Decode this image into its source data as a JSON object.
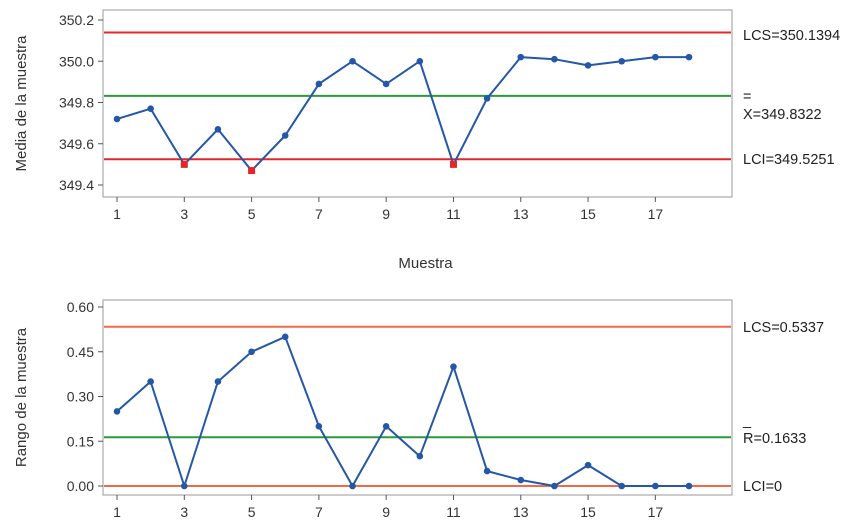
{
  "chart_data": [
    {
      "type": "line",
      "id": "xbar",
      "ylabel": "Media de la muestra",
      "xlabel": "Muestra",
      "ylim": [
        349.4,
        350.2
      ],
      "yticks": [
        "349.4",
        "349.6",
        "349.8",
        "350.0",
        "350.2"
      ],
      "xlim": [
        1,
        18
      ],
      "xticks": [
        1,
        3,
        5,
        7,
        9,
        11,
        13,
        15,
        17
      ],
      "xtick_labels": [
        "1",
        "3",
        "5",
        "7",
        "9",
        "11",
        "13",
        "15",
        "17"
      ],
      "x": [
        1,
        2,
        3,
        4,
        5,
        6,
        7,
        8,
        9,
        10,
        11,
        12,
        13,
        14,
        15,
        16,
        17,
        18
      ],
      "values": [
        349.72,
        349.77,
        349.5,
        349.67,
        349.47,
        349.64,
        349.89,
        350.0,
        349.89,
        350.0,
        349.5,
        349.82,
        350.02,
        350.01,
        349.98,
        350.0,
        350.02,
        350.02
      ],
      "out_of_control": [
        3,
        5,
        11
      ],
      "limits": [
        {
          "name": "ucl",
          "value": 350.1394,
          "label": "LCS=350.1394",
          "color": "#e3262a"
        },
        {
          "name": "center",
          "value": 349.8322,
          "label": "X=349.8322",
          "overline": "=",
          "color": "#2a9a3a"
        },
        {
          "name": "lcl",
          "value": 349.5251,
          "label": "LCI=349.5251",
          "color": "#e3262a"
        }
      ]
    },
    {
      "type": "line",
      "id": "range",
      "ylabel": "Rango de la muestra",
      "ylim": [
        0,
        0.6
      ],
      "yticks": [
        "0.00",
        "0.15",
        "0.30",
        "0.45",
        "0.60"
      ],
      "xlim": [
        1,
        18
      ],
      "xticks": [
        1,
        3,
        5,
        7,
        9,
        11,
        13,
        15,
        17
      ],
      "xtick_labels": [
        "1",
        "3",
        "5",
        "7",
        "9",
        "11",
        "13",
        "15",
        "17"
      ],
      "x": [
        1,
        2,
        3,
        4,
        5,
        6,
        7,
        8,
        9,
        10,
        11,
        12,
        13,
        14,
        15,
        16,
        17,
        18
      ],
      "values": [
        0.25,
        0.35,
        0.0,
        0.35,
        0.45,
        0.5,
        0.2,
        0.0,
        0.2,
        0.1,
        0.4,
        0.05,
        0.02,
        0.0,
        0.07,
        0.0,
        0.0,
        0.0
      ],
      "out_of_control": [],
      "limits": [
        {
          "name": "ucl",
          "value": 0.5337,
          "label": "LCS=0.5337",
          "color": "#f06a4a"
        },
        {
          "name": "center",
          "value": 0.1633,
          "label": "R=0.1633",
          "overline": "_",
          "color": "#2a9a3a"
        },
        {
          "name": "lcl",
          "value": 0,
          "label": "LCI=0",
          "color": "#f06a4a"
        }
      ]
    }
  ],
  "colors": {
    "series": "#2457a8",
    "out_of_control_point": "#e3262a",
    "frame": "#aaaaaa"
  }
}
